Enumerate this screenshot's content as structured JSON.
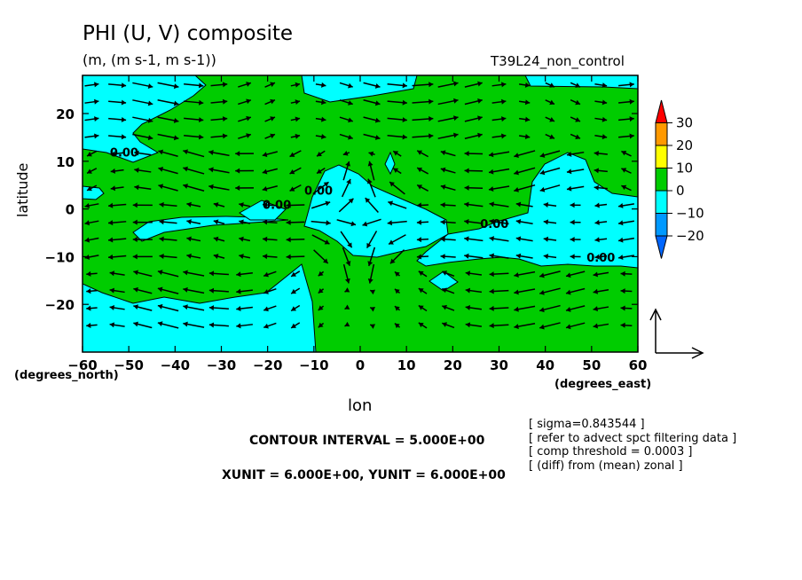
{
  "chart_data": {
    "type": "contour-vector",
    "title": "PHI (U, V) composite",
    "units_line": "(m, (m s-1, m s-1))",
    "run_label": "T39L24_non_control",
    "xlabel": "lon",
    "ylabel": "latitude",
    "x_units": "(degrees_east)",
    "y_units": "(degrees_north)",
    "xlim": [
      -60,
      60
    ],
    "ylim": [
      -30,
      28
    ],
    "x_ticks": [
      -60,
      -50,
      -40,
      -30,
      -20,
      -10,
      0,
      10,
      20,
      30,
      40,
      50,
      60
    ],
    "y_ticks": [
      -20,
      -10,
      0,
      10,
      20
    ],
    "x_tick_labels": [
      "−60",
      "−50",
      "−40",
      "−30",
      "−20",
      "−10",
      "0",
      "10",
      "20",
      "30",
      "40",
      "50",
      "60"
    ],
    "y_tick_labels": [
      "−20",
      "−10",
      "0",
      "10",
      "20"
    ],
    "colorbar": {
      "labels": [
        "30",
        "20",
        "10",
        "0",
        "−10",
        "−20"
      ],
      "levels": [
        30,
        20,
        10,
        0,
        -10,
        -20
      ],
      "colors": [
        "#ff0000",
        "#ff9900",
        "#ffff00",
        "#00cc00",
        "#00ffff",
        "#0099ff",
        "#0066ff"
      ]
    },
    "fill_colors": {
      "positive": "#00cc00",
      "negative": "#00ffff"
    },
    "contour_labels": [
      {
        "text": "0.00",
        "lon": -51,
        "lat": 11
      },
      {
        "text": "0.00",
        "lon": -18,
        "lat": 0
      },
      {
        "text": "0.00",
        "lon": -9,
        "lat": 3
      },
      {
        "text": "0.00",
        "lon": 29,
        "lat": -4
      },
      {
        "text": "0.00",
        "lon": 52,
        "lat": -11
      }
    ],
    "contour_interval": "CONTOUR INTERVAL = 5.000E+00",
    "vector_scale": "XUNIT = 6.000E+00, YUNIT = 6.000E+00",
    "notes": [
      "[ sigma=0.843544 ]",
      "[ refer to advect spct filtering data ]",
      "[ comp threshold = 0.0003 ]",
      "[ (diff) from (mean) zonal ]"
    ]
  }
}
